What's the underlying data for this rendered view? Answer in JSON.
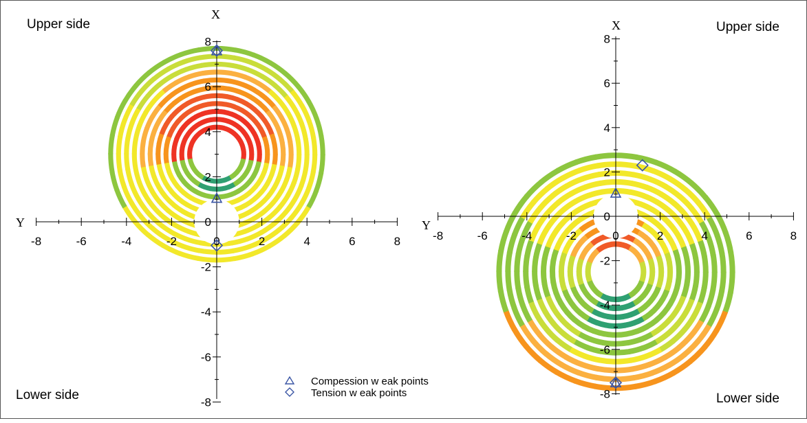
{
  "chart_data": [
    {
      "type": "polar-contour",
      "corner_labels": {
        "upper": "Upper side",
        "lower": "Lower side"
      },
      "xaxis_label": "X",
      "yaxis_label": "Y",
      "x_ticks": [
        "-8",
        "-6",
        "-4",
        "-2",
        "0",
        "2",
        "4",
        "6",
        "8"
      ],
      "y_ticks": [
        "-8",
        "-6",
        "-4",
        "-2",
        "0",
        "2",
        "4",
        "6",
        "8"
      ],
      "xlim": [
        -8,
        8
      ],
      "ylim": [
        -8,
        8
      ],
      "grid": false,
      "hole_radius": 1,
      "ring_center": [
        0,
        3
      ],
      "ring_radii": [
        1.2,
        1.55,
        1.9,
        2.25,
        2.6,
        2.95,
        3.3,
        3.65,
        4.0,
        4.35,
        4.7
      ],
      "compression_weak_points": [
        [
          0,
          7.6
        ],
        [
          0,
          1.05
        ]
      ],
      "tension_weak_points": [
        [
          0,
          7.6
        ],
        [
          0,
          -1.05
        ]
      ]
    },
    {
      "type": "polar-contour",
      "corner_labels": {
        "upper": "Upper side",
        "lower": "Lower side"
      },
      "xaxis_label": "X",
      "yaxis_label": "Y",
      "x_ticks": [
        "-8",
        "-6",
        "-4",
        "-2",
        "0",
        "2",
        "4",
        "6",
        "8"
      ],
      "y_ticks": [
        "-8",
        "-6",
        "-4",
        "-2",
        "0",
        "2",
        "4",
        "6",
        "8"
      ],
      "xlim": [
        -8,
        8
      ],
      "ylim": [
        -8,
        8
      ],
      "grid": false,
      "hole_radius": 1,
      "ring_center": [
        0,
        -2.5
      ],
      "ring_radii": [
        1.25,
        1.65,
        2.05,
        2.45,
        2.85,
        3.25,
        3.65,
        4.05,
        4.45,
        4.85,
        5.25
      ],
      "compression_weak_points": [
        [
          0,
          1.05
        ],
        [
          0,
          -7.5
        ]
      ],
      "tension_weak_points": [
        [
          1.2,
          2.3
        ],
        [
          0,
          -7.5
        ]
      ]
    }
  ],
  "legend": {
    "compression": "Compession w eak points",
    "tension": "Tension w eak points"
  },
  "colors": {
    "red": "#ee3324",
    "red_orange": "#f05a28",
    "orange": "#f7941d",
    "light_orange": "#fbb040",
    "yellow": "#f2e82a",
    "yellow_green": "#c9dd3a",
    "green": "#8dc63f",
    "teal": "#2fa072",
    "marker": "#3a55a4"
  }
}
